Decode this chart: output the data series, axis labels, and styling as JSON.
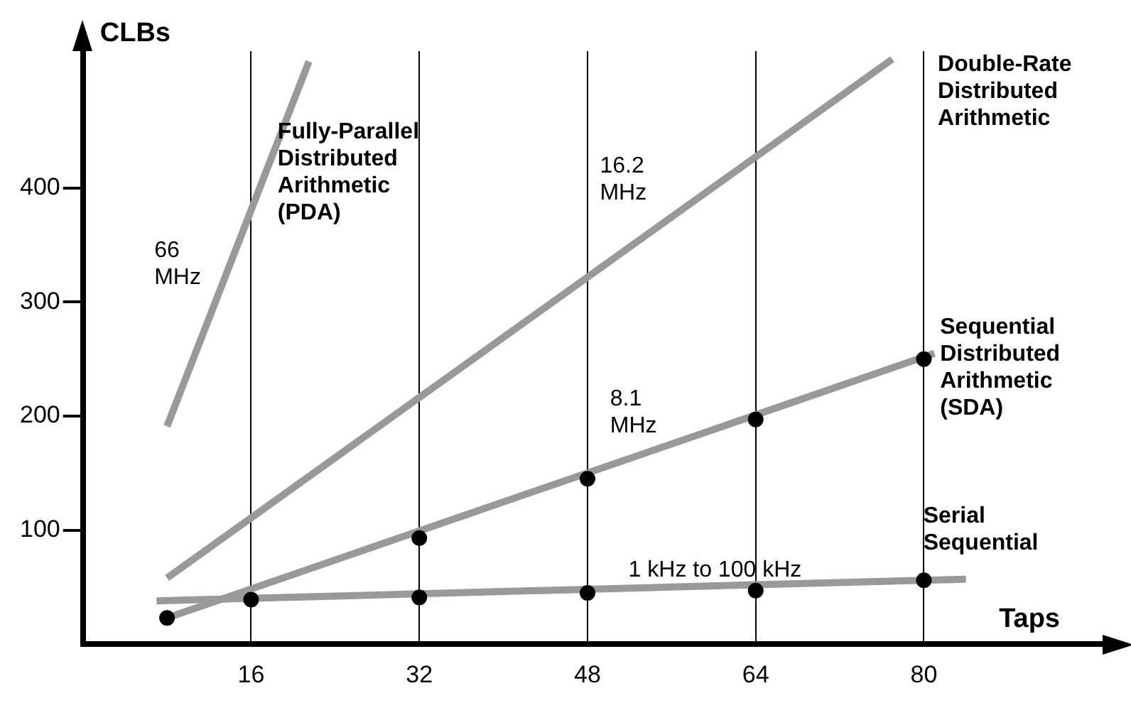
{
  "chart_data": {
    "type": "line",
    "xlabel": "Taps",
    "ylabel": "CLBs",
    "xlim": [
      0,
      97
    ],
    "xticks": [
      16,
      32,
      48,
      64,
      80
    ],
    "ylim": [
      0,
      520
    ],
    "yticks": [
      100,
      200,
      300,
      400
    ],
    "grid": "x",
    "legend": false,
    "series": [
      {
        "name": "Fully-Parallel Distributed Arithmetic (PDA)",
        "color": "#999999",
        "type": "line",
        "marker": "none",
        "x": [
          8,
          21.5
        ],
        "values": [
          191,
          511
        ]
      },
      {
        "name": "Double-Rate Distributed Arithmetic",
        "color": "#999999",
        "type": "line",
        "marker": "none",
        "x": [
          8,
          77
        ],
        "values": [
          58,
          513
        ]
      },
      {
        "name": "Sequential Distributed Arithmetic (SDA)",
        "color": "#999999",
        "type": "line",
        "marker": "none",
        "x": [
          8,
          81
        ],
        "values": [
          23,
          255
        ]
      },
      {
        "name": "Serial Sequential",
        "color": "#999999",
        "type": "line",
        "marker": "none",
        "x": [
          7,
          84
        ],
        "values": [
          38,
          57
        ]
      },
      {
        "color": "#000000",
        "type": "scatter",
        "marker": "circle",
        "x": [
          8,
          32,
          48,
          64,
          80
        ],
        "values": [
          23,
          93,
          145,
          197,
          250
        ]
      },
      {
        "color": "#000000",
        "type": "scatter",
        "marker": "circle",
        "x": [
          16,
          32,
          48,
          64,
          80
        ],
        "values": [
          39,
          41,
          45,
          47,
          56
        ]
      }
    ],
    "annotations": [
      "66 MHz",
      "16.2 MHz",
      "8.1 MHz",
      "1 kHz to 100 kHz"
    ]
  }
}
